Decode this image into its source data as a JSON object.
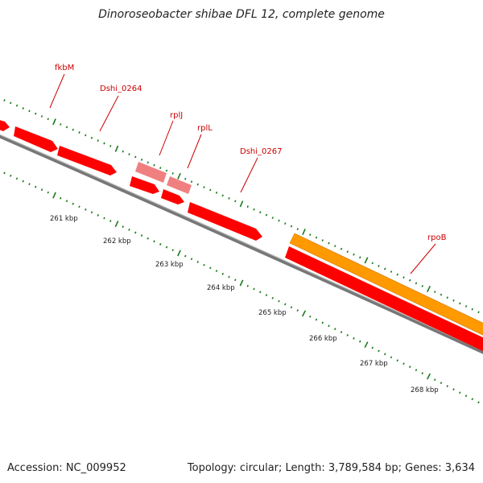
{
  "title": "Dinoroseobacter shibae DFL 12, complete genome",
  "footer": {
    "accession": "Accession: NC_009952",
    "topology": "Topology: circular; Length: 3,789,584 bp; Genes: 3,634"
  },
  "colors": {
    "gene": "#ff0000",
    "rna_gene": "#f08080",
    "highlight": "#ff9900",
    "backbone": "#888888",
    "ticks": "#1a7a1a",
    "label": "#cc0000"
  },
  "ruler": [
    "261 kbp",
    "262 kbp",
    "263 kbp",
    "264 kbp",
    "265 kbp",
    "266 kbp",
    "267 kbp",
    "268 kbp"
  ],
  "gene_labels": [
    "fkbM",
    "Dshi_0264",
    "rplJ",
    "rplL",
    "Dshi_0267",
    "rpoB"
  ]
}
